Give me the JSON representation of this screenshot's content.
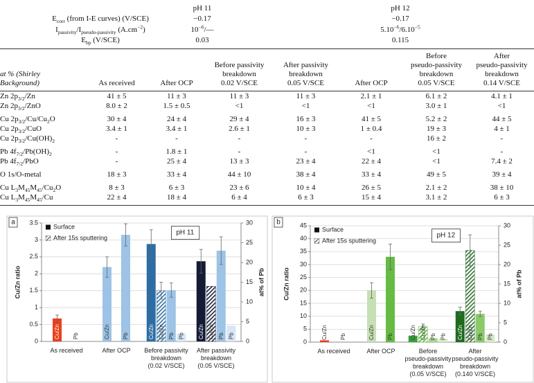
{
  "top_table": {
    "columns": [
      "pH 11",
      "pH 12"
    ],
    "rows": [
      {
        "label": [
          "E",
          {
            "sub": "corr"
          },
          " (from I-E curves) (V/SCE)"
        ],
        "values": [
          "−0.17",
          "−0.17"
        ]
      },
      {
        "label": [
          "I",
          {
            "sub": "passivity"
          },
          "/I",
          {
            "sub": "pseudo-passivity"
          },
          " (A.cm",
          {
            "sup": "−2"
          },
          ")"
        ],
        "values": [
          [
            "10",
            {
              "sup": "−6"
            },
            "/—"
          ],
          [
            "5.10",
            {
              "sup": "−6"
            },
            "/6.10",
            {
              "sup": "−5"
            }
          ]
        ]
      },
      {
        "label": [
          "E",
          {
            "sub": "bp"
          },
          " (V/SCE)"
        ],
        "values": [
          "0.03",
          "0.115"
        ]
      }
    ]
  },
  "table": {
    "header": [
      "at % (Shirley\nBackground)",
      "As received",
      "After OCP",
      "Before passivity\nbreakdown\n0.02 V/SCE",
      "After passivity\nbreakdown\n0.05 V/SCE",
      "After OCP",
      "Before\npseudo-passivity\nbreakdown\n0.05 V/SCE",
      "After\npseudo-passivity\nbreakdown\n0.14 V/SCE"
    ],
    "rows": [
      {
        "label": [
          "Zn 2p",
          {
            "sub": "3/2"
          },
          "/Zn"
        ],
        "values": [
          "41 ± 5",
          "11 ± 3",
          "11 ± 3",
          "11 ± 3",
          "2.1 ± 1",
          "6.1 ± 2",
          "4.1 ± 1"
        ]
      },
      {
        "label": [
          "Zn 2p",
          {
            "sub": "3/2"
          },
          "/ZnO"
        ],
        "values": [
          "8.0 ± 2",
          "1.5 ± 0.5",
          "<1",
          "<1",
          "<1",
          "3.0 ± 1",
          "<1"
        ]
      },
      {
        "label": [
          "Cu 2p",
          {
            "sub": "3/2"
          },
          "/Cu/Cu",
          {
            "sub": "2"
          },
          "O"
        ],
        "values": [
          "30 ± 4",
          "24 ± 4",
          "29 ± 4",
          "16 ± 3",
          "41 ± 5",
          "5.2 ± 2",
          "44 ± 5"
        ]
      },
      {
        "label": [
          "Cu 2p",
          {
            "sub": "3/2"
          },
          "/CuO"
        ],
        "values": [
          "3.4 ± 1",
          "3.4 ± 1",
          "2.6 ± 1",
          "10 ± 3",
          "1 ± 0.4",
          "19 ± 3",
          "4 ± 1"
        ]
      },
      {
        "label": [
          "Cu 2p",
          {
            "sub": "3/2"
          },
          "/Cu(OH)",
          {
            "sub": "2"
          }
        ],
        "values": [
          "-",
          "-",
          "-",
          "-",
          "-",
          "16 ± 2",
          "-"
        ]
      },
      {
        "label": [
          "Pb 4f",
          {
            "sub": "7/2"
          },
          "/Pb(OH)",
          {
            "sub": "2"
          }
        ],
        "values": [
          "-",
          "1.8 ± 1",
          "-",
          "-",
          "<1",
          "<1",
          "-"
        ]
      },
      {
        "label": [
          "Pb 4f",
          {
            "sub": "7/2"
          },
          "/PbO"
        ],
        "values": [
          "-",
          "25 ± 4",
          "13 ± 3",
          "23 ± 4",
          "22 ± 4",
          "<1",
          "7.4 ± 2"
        ]
      },
      {
        "label": [
          "O 1s/O-metal"
        ],
        "values": [
          "18 ± 3",
          "33 ± 4",
          "44 ± 10",
          "38 ± 4",
          "33 ± 4",
          "49 ± 5",
          "39 ± 4"
        ]
      },
      {
        "label": [
          "Cu L",
          {
            "sub": "3"
          },
          "M",
          {
            "sub": "45"
          },
          "M",
          {
            "sub": "45"
          },
          "/Cu",
          {
            "sub": "2"
          },
          "O"
        ],
        "values": [
          "8 ± 3",
          "6 ± 3",
          "23 ± 6",
          "10 ± 4",
          "26 ± 5",
          "2.1 ± 2",
          "38 ± 10"
        ]
      },
      {
        "label": [
          "Cu L",
          {
            "sub": "3"
          },
          "M",
          {
            "sub": "45"
          },
          "M",
          {
            "sub": "45"
          },
          "/Cu"
        ],
        "values": [
          "22 ± 4",
          "18 ± 4",
          "6 ± 4",
          "6 ± 3",
          "15 ± 4",
          "3.1 ± 2",
          "6 ± 3"
        ]
      }
    ]
  },
  "chart_data": [
    {
      "type": "bar",
      "panel": "a",
      "annotation": "pH 11",
      "ylabel": "Cu/Zn ratio",
      "y2label": "at% of Pb",
      "categories": [
        "As received",
        "After OCP",
        "Before passivity\nbreakdown\n(0.02 V/SCE)",
        "After passivity\nbreakdown\n(0.05 V/SCE)"
      ],
      "ylim": [
        0,
        3.5
      ],
      "yticks": [
        0,
        0.5,
        1,
        1.5,
        2,
        2.5,
        3,
        3.5
      ],
      "y2lim": [
        0,
        30
      ],
      "y2ticks": [
        0,
        5,
        10,
        15,
        20,
        25,
        30
      ],
      "grid": true,
      "legend": [
        "Surface",
        "After 15s sputtering"
      ],
      "series": [
        {
          "name": "Cu/Zn",
          "axis": "y",
          "hatched": false,
          "colors": [
            "#e8401c",
            "#9dc3e6",
            "#2e6da4",
            "#151a35"
          ],
          "values": [
            0.68,
            2.2,
            2.88,
            2.37
          ],
          "errors": [
            0.1,
            0.3,
            0.42,
            0.35
          ]
        },
        {
          "name": "Cu/Zn",
          "axis": "y",
          "hatched": true,
          "colors": [
            null,
            null,
            "#2e6da4",
            "#151a35"
          ],
          "values": [
            null,
            null,
            1.5,
            1.63
          ],
          "errors": [
            null,
            null,
            0.25,
            null
          ]
        },
        {
          "name": "Pb",
          "axis": "y2",
          "hatched": false,
          "colors": [
            "#e8401c",
            "#9dc3e6",
            "#9dc3e6",
            "#9dc3e6"
          ],
          "values": [
            0,
            27,
            13,
            23
          ],
          "errors": [
            null,
            2.8,
            1.8,
            3.5
          ]
        },
        {
          "name": "Pb",
          "axis": "y2",
          "hatched": false,
          "colors": [
            null,
            null,
            "#d6e6f5",
            "#d6e6f5"
          ],
          "values": [
            null,
            null,
            2,
            4
          ],
          "errors": [
            null,
            null,
            null,
            null
          ]
        }
      ]
    },
    {
      "type": "bar",
      "panel": "b",
      "annotation": "pH 12",
      "ylabel": "Cu/Zn ratio",
      "y2label": "at% of Pb",
      "categories": [
        "As received",
        "After OCP",
        "Before\npseudo-passivity\nbreakdown\n(0.05 V/SCE)",
        "After\npseudo-passivity\nbreakdown\n(0.140 V/SCE)"
      ],
      "ylim": [
        0,
        45
      ],
      "yticks": [
        0,
        5,
        10,
        15,
        20,
        25,
        30,
        35,
        40,
        45
      ],
      "y2lim": [
        0,
        30
      ],
      "y2ticks": [
        0,
        5,
        10,
        15,
        20,
        25,
        30
      ],
      "grid": true,
      "legend": [
        "Surface",
        "After 15s sputtering"
      ],
      "series": [
        {
          "name": "Cu/Zn",
          "axis": "y",
          "hatched": false,
          "colors": [
            "#e8401c",
            "#c6e0b4",
            "#3aa13a",
            "#1f6b1f"
          ],
          "values": [
            0.7,
            20,
            2.5,
            12
          ],
          "errors": [
            null,
            3,
            null,
            1.5
          ]
        },
        {
          "name": "Cu/Zn",
          "axis": "y",
          "hatched": true,
          "colors": [
            null,
            null,
            "#5cb83a",
            "#2f6e2f"
          ],
          "values": [
            null,
            null,
            6,
            35.5
          ],
          "errors": [
            null,
            null,
            1,
            6
          ]
        },
        {
          "name": "Pb",
          "axis": "y2",
          "hatched": false,
          "colors": [
            "#e8401c",
            "#66bb44",
            "#a9d68a",
            "#8cc96a"
          ],
          "values": [
            0,
            22,
            1,
            7.3
          ],
          "errors": [
            null,
            3.3,
            null,
            0.7
          ]
        },
        {
          "name": "Pb",
          "axis": "y2",
          "hatched": false,
          "colors": [
            null,
            null,
            "#d4ebc6",
            "#d4ebc6"
          ],
          "values": [
            null,
            null,
            0.9,
            2
          ],
          "errors": [
            null,
            null,
            null,
            null
          ]
        }
      ]
    }
  ]
}
